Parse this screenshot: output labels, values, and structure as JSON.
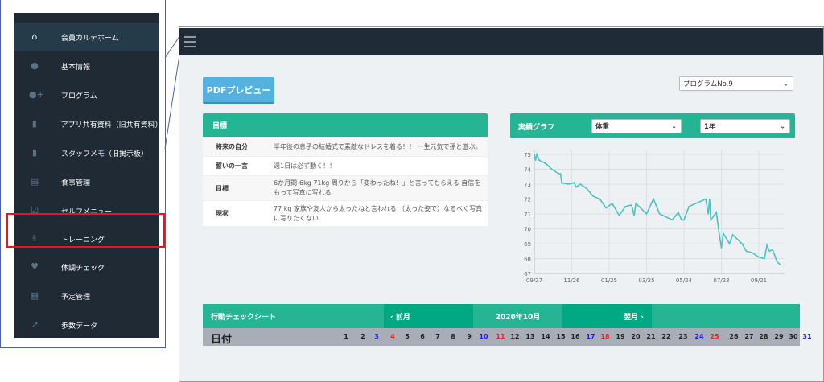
{
  "sidebar": {
    "items": [
      {
        "label": "会員カルテホーム",
        "icon": "home-icon",
        "glyph": "⌂",
        "active": true
      },
      {
        "label": "基本情報",
        "icon": "user-icon",
        "glyph": "●"
      },
      {
        "label": "プログラム",
        "icon": "user-plus-icon",
        "glyph": "●+"
      },
      {
        "label": "アプリ共有資料（旧共有資料）",
        "icon": "file-icon",
        "glyph": "▮"
      },
      {
        "label": "スタッフメモ（旧掲示板）",
        "icon": "file-icon",
        "glyph": "▮"
      },
      {
        "label": "食事管理",
        "icon": "file-text-icon",
        "glyph": "▤"
      },
      {
        "label": "セルフメニュー",
        "icon": "checkbox-icon",
        "glyph": "☑"
      },
      {
        "label": "トレーニング",
        "icon": "training-icon",
        "glyph": "✌"
      },
      {
        "label": "体調チェック",
        "icon": "heartbeat-icon",
        "glyph": "♥"
      },
      {
        "label": "予定管理",
        "icon": "calendar-check-icon",
        "glyph": "▦"
      },
      {
        "label": "歩数データ",
        "icon": "line-chart-icon",
        "glyph": "↗"
      }
    ]
  },
  "toolbar": {
    "pdf_label": "PDFプレビュー",
    "program_select": "プログラムNo.9"
  },
  "goal": {
    "title": "目標",
    "rows": [
      {
        "key": "将来の自分",
        "value": "半年後の息子の結婚式で素敵なドレスを着る！！ 一生元気で孫と遊ぶ。"
      },
      {
        "key": "誓いの一言",
        "value": "週1日は必ず動く！！"
      },
      {
        "key": "目標",
        "value": "6か月間-6kg 71kg 周りから「変わったね！」と言ってもらえる 自信をもって写真に写れる"
      },
      {
        "key": "現状",
        "value": "77 kg 家族や友人から太ったねと言われる （太った姿で）なるべく写真に写りたくない"
      }
    ]
  },
  "chart_panel": {
    "title": "実績グラフ",
    "metric_select": "体重",
    "period_select": "1年"
  },
  "chart_data": {
    "type": "line",
    "color": "#4cc3c0",
    "ylim": [
      67,
      75
    ],
    "yticks": [
      "75",
      "74",
      "73",
      "72",
      "71",
      "70",
      "69",
      "68",
      "67"
    ],
    "xticks": [
      "09/27",
      "11/26",
      "01/25",
      "03/25",
      "05/24",
      "07/23",
      "09/21"
    ],
    "grid": true,
    "points": [
      [
        "2019-09-27",
        75.0
      ],
      [
        "2019-09-29",
        74.6
      ],
      [
        "2019-10-01",
        75.0
      ],
      [
        "2019-10-05",
        74.6
      ],
      [
        "2019-10-15",
        74.4
      ],
      [
        "2019-10-25",
        74.0
      ],
      [
        "2019-11-05",
        73.7
      ],
      [
        "2019-11-08",
        73.7
      ],
      [
        "2019-11-10",
        73.1
      ],
      [
        "2019-11-20",
        73.0
      ],
      [
        "2019-11-30",
        73.1
      ],
      [
        "2019-12-03",
        72.8
      ],
      [
        "2019-12-10",
        73.0
      ],
      [
        "2019-12-20",
        72.7
      ],
      [
        "2019-12-30",
        72.2
      ],
      [
        "2020-01-10",
        72.0
      ],
      [
        "2020-01-20",
        71.4
      ],
      [
        "2020-01-30",
        71.7
      ],
      [
        "2020-02-10",
        70.9
      ],
      [
        "2020-02-20",
        71.5
      ],
      [
        "2020-03-01",
        71.6
      ],
      [
        "2020-03-05",
        70.9
      ],
      [
        "2020-03-08",
        71.7
      ],
      [
        "2020-03-25",
        71.0
      ],
      [
        "2020-04-05",
        72.0
      ],
      [
        "2020-04-15",
        71.0
      ],
      [
        "2020-04-25",
        70.8
      ],
      [
        "2020-05-05",
        70.6
      ],
      [
        "2020-05-15",
        71.1
      ],
      [
        "2020-05-20",
        70.6
      ],
      [
        "2020-05-24",
        70.6
      ],
      [
        "2020-06-01",
        71.5
      ],
      [
        "2020-06-28",
        72.0
      ],
      [
        "2020-07-02",
        71.0
      ],
      [
        "2020-07-04",
        72.0
      ],
      [
        "2020-07-06",
        70.6
      ],
      [
        "2020-07-15",
        71.1
      ],
      [
        "2020-07-19",
        69.8
      ],
      [
        "2020-07-23",
        68.7
      ],
      [
        "2020-07-26",
        69.7
      ],
      [
        "2020-08-05",
        69.0
      ],
      [
        "2020-08-10",
        69.6
      ],
      [
        "2020-08-25",
        69.0
      ],
      [
        "2020-09-01",
        68.5
      ],
      [
        "2020-09-10",
        68.4
      ],
      [
        "2020-09-21",
        68.1
      ],
      [
        "2020-09-30",
        68.0
      ],
      [
        "2020-10-04",
        68.9
      ],
      [
        "2020-10-08",
        68.5
      ],
      [
        "2020-10-13",
        68.6
      ],
      [
        "2020-10-20",
        67.8
      ],
      [
        "2020-10-25",
        67.6
      ]
    ]
  },
  "action_sheet": {
    "title": "行動チェックシート",
    "prev_label": "‹  前月",
    "month": "2020年10月",
    "next_label": "翌月  ›",
    "date_label": "日付",
    "days": [
      {
        "n": "1"
      },
      {
        "n": "2"
      },
      {
        "n": "3",
        "c": "#1a1aff"
      },
      {
        "n": "4",
        "c": "#ff1a1a"
      },
      {
        "n": "5"
      },
      {
        "n": "6"
      },
      {
        "n": "7"
      },
      {
        "n": "8"
      },
      {
        "n": "9"
      },
      {
        "n": "10",
        "c": "#1a1aff"
      },
      {
        "n": "11",
        "c": "#ff1a1a"
      },
      {
        "n": "12"
      },
      {
        "n": "13"
      },
      {
        "n": "14"
      },
      {
        "n": "15"
      },
      {
        "n": "16"
      },
      {
        "n": "17",
        "c": "#1a1aff"
      },
      {
        "n": "18",
        "c": "#ff1a1a"
      },
      {
        "n": "19"
      },
      {
        "n": "20"
      },
      {
        "n": "21"
      },
      {
        "n": "22"
      },
      {
        "n": "23"
      },
      {
        "n": "24",
        "c": "#1a1aff"
      },
      {
        "n": "25",
        "c": "#ff1a1a"
      },
      {
        "n": "26"
      },
      {
        "n": "27"
      },
      {
        "n": "28"
      },
      {
        "n": "29"
      },
      {
        "n": "30"
      },
      {
        "n": "31",
        "c": "#1a1aff"
      }
    ]
  },
  "colors": {
    "sidebar_bg": "#1f2a35",
    "accent": "#26b594",
    "highlight": "#e8161b",
    "pdf_button": "#55b2e0"
  }
}
